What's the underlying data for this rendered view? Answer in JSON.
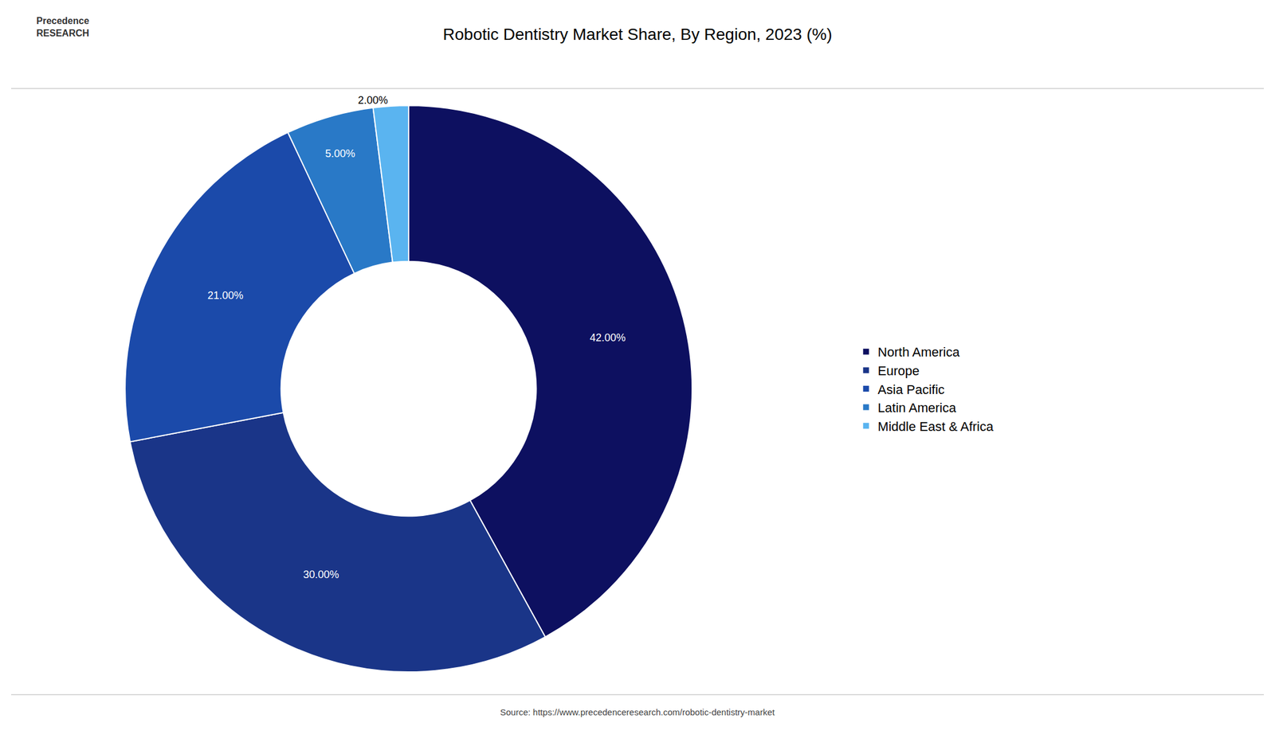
{
  "chart_data": {
    "type": "pie",
    "title": "Robotic Dentistry Market Share, By Region, 2023 (%)",
    "categories": [
      "North America",
      "Europe",
      "Asia Pacific",
      "Latin America",
      "Middle East & Africa"
    ],
    "values": [
      42.0,
      30.0,
      21.0,
      5.0,
      2.0
    ],
    "value_labels": [
      "42.00%",
      "30.00%",
      "21.00%",
      "5.00%",
      "2.00%"
    ],
    "data_labels": true,
    "colors": [
      "#0d1060",
      "#1a3588",
      "#1b4aaa",
      "#2979c7",
      "#5ab4f0"
    ],
    "legend": "right",
    "annotations": [
      "Source: https://www.precedenceresearch.com/robotic-dentistry-market",
      "Precedence\nRESEARCH"
    ]
  }
}
